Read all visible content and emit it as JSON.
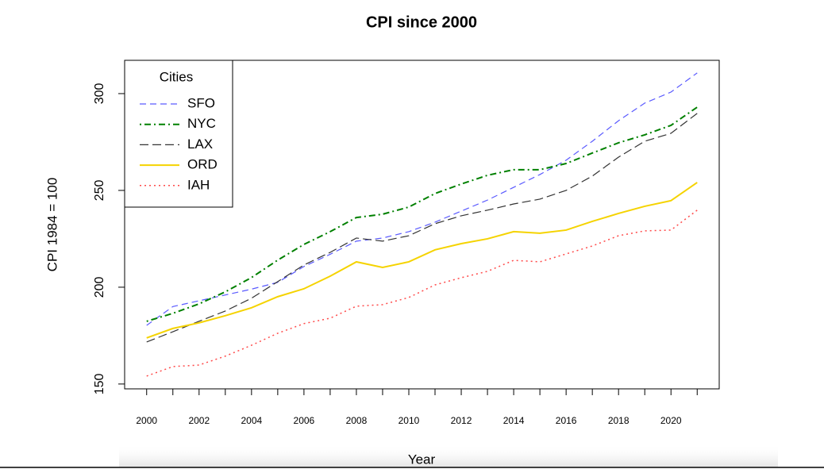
{
  "chart_data": {
    "type": "line",
    "title": "CPI since 2000",
    "x_label": "Year",
    "y_label": "CPI 1984 = 100",
    "x": [
      2000,
      2001,
      2002,
      2003,
      2004,
      2005,
      2006,
      2007,
      2008,
      2009,
      2010,
      2011,
      2012,
      2013,
      2014,
      2015,
      2016,
      2017,
      2018,
      2019,
      2020,
      2021
    ],
    "series": [
      {
        "name": "SFO",
        "color": "#5a5aff",
        "linetype": "dashed",
        "values": [
          180.3,
          190,
          193,
          196,
          199,
          202.5,
          210.7,
          217,
          223.8,
          225.4,
          228.7,
          233.6,
          239.3,
          245,
          251.6,
          258.2,
          265.6,
          275.4,
          286,
          295.1,
          300.8,
          310.7
        ]
      },
      {
        "name": "NYC",
        "color": "#008000",
        "linetype": "dotdash",
        "values": [
          182.4,
          186.5,
          191.4,
          197.6,
          205,
          214,
          222.1,
          228.7,
          236,
          237.7,
          241.4,
          248.4,
          253.3,
          257.8,
          260.7,
          260.7,
          263.9,
          269.3,
          274.6,
          278.7,
          283.6,
          293
        ]
      },
      {
        "name": "LAX",
        "color": "#333333",
        "linetype": "longdash",
        "values": [
          171.7,
          177,
          182.4,
          187.7,
          194.3,
          202.9,
          211.5,
          218,
          225.4,
          223.8,
          226.6,
          232.8,
          236.9,
          239.8,
          243,
          245.5,
          250,
          257.4,
          267.2,
          275.4,
          279.5,
          289.8
        ]
      },
      {
        "name": "ORD",
        "color": "#f5d300",
        "linetype": "solid",
        "values": [
          173.8,
          178.7,
          181.6,
          185.3,
          189.4,
          195.1,
          199.2,
          205.7,
          213.1,
          210.2,
          213.1,
          219.3,
          222.5,
          225,
          228.7,
          227.9,
          229.5,
          234,
          238.1,
          241.8,
          244.7,
          254.1
        ]
      },
      {
        "name": "IAH",
        "color": "#ff4a4a",
        "linetype": "dotted",
        "values": [
          154.1,
          159,
          159.8,
          164.4,
          170,
          176.2,
          181.2,
          184,
          190.2,
          191,
          194.7,
          201.2,
          204.9,
          208.2,
          213.9,
          213.1,
          217.2,
          221.3,
          226.6,
          229.1,
          229.5,
          239.8
        ]
      }
    ],
    "legend_title": "Cities",
    "legend_position": "top-left",
    "xlim": [
      1999.16,
      2021.84
    ],
    "xticks": [
      2000,
      2002,
      2004,
      2006,
      2008,
      2010,
      2012,
      2014,
      2016,
      2018,
      2020
    ],
    "xminor_ticks": [
      2001,
      2003,
      2005,
      2007,
      2009,
      2011,
      2013,
      2015,
      2017,
      2019,
      2021
    ],
    "ylim": [
      147.5,
      317.2
    ],
    "yticks": [
      150,
      200,
      250,
      300
    ]
  }
}
